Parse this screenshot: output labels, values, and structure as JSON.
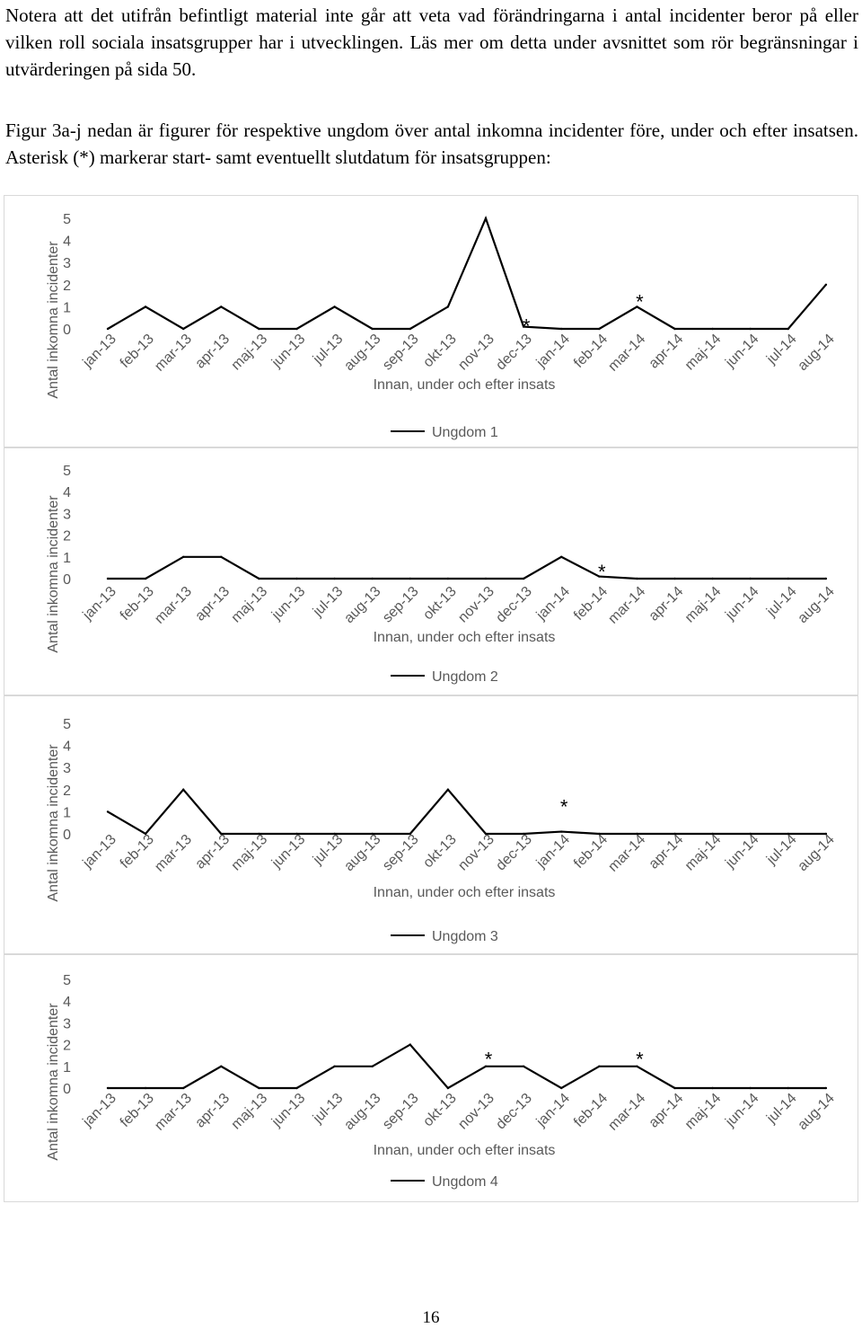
{
  "paragraphs": [
    "Notera att det utifrån befintligt material inte går att veta vad förändringarna i antal incidenter beror på eller vilken roll sociala insatsgrupper har i utvecklingen. Läs mer om detta under avsnittet som rör begränsningar i utvärderingen på sida 50.",
    "Figur 3a-j nedan är figurer för respektive ungdom över antal inkomna incidenter före, under och efter insatsen. Asterisk (*) markerar start- samt eventuellt slutdatum för insatsgruppen:"
  ],
  "page_number": "16",
  "chart_data": [
    {
      "type": "line",
      "ylabel": "Antal inkomna incidenter",
      "xlabel": "Innan, under och efter insats",
      "categories": [
        "jan-13",
        "feb-13",
        "mar-13",
        "apr-13",
        "maj-13",
        "jun-13",
        "jul-13",
        "aug-13",
        "sep-13",
        "okt-13",
        "nov-13",
        "dec-13",
        "jan-14",
        "feb-14",
        "mar-14",
        "apr-14",
        "maj-14",
        "jun-14",
        "jul-14",
        "aug-14"
      ],
      "yticks": [
        "0",
        "1",
        "2",
        "3",
        "4",
        "5"
      ],
      "ylim": [
        0,
        5
      ],
      "series": [
        {
          "name": "Ungdom 1",
          "values": [
            0,
            1,
            0,
            1,
            0,
            0,
            1,
            0,
            0,
            1,
            5,
            0.1,
            0,
            0,
            1,
            0,
            0,
            0,
            0,
            2
          ]
        }
      ],
      "annotations": [
        {
          "text": "*",
          "x": "dec-13",
          "y": 0.3
        },
        {
          "text": "*",
          "x": "mar-14",
          "y": 1.4
        }
      ],
      "legend": "bottom",
      "grid": false
    },
    {
      "type": "line",
      "ylabel": "Antal inkomna incidenter",
      "xlabel": "Innan, under och efter insats",
      "categories": [
        "jan-13",
        "feb-13",
        "mar-13",
        "apr-13",
        "maj-13",
        "jun-13",
        "jul-13",
        "aug-13",
        "sep-13",
        "okt-13",
        "nov-13",
        "dec-13",
        "jan-14",
        "feb-14",
        "mar-14",
        "apr-14",
        "maj-14",
        "jun-14",
        "jul-14",
        "aug-14"
      ],
      "yticks": [
        "0",
        "1",
        "2",
        "3",
        "4",
        "5"
      ],
      "ylim": [
        0,
        5
      ],
      "series": [
        {
          "name": "Ungdom 2",
          "values": [
            0,
            0,
            1,
            1,
            0,
            0,
            0,
            0,
            0,
            0,
            0,
            0,
            1,
            0.1,
            0,
            0,
            0,
            0,
            0,
            0
          ]
        }
      ],
      "annotations": [
        {
          "text": "*",
          "x": "feb-14",
          "y": 0.5
        }
      ],
      "legend": "bottom",
      "grid": false
    },
    {
      "type": "line",
      "ylabel": "Antal inkomna incidenter",
      "xlabel": "Innan, under och efter insats",
      "categories": [
        "jan-13",
        "feb-13",
        "mar-13",
        "apr-13",
        "maj-13",
        "jun-13",
        "jul-13",
        "aug-13",
        "sep-13",
        "okt-13",
        "nov-13",
        "dec-13",
        "jan-14",
        "feb-14",
        "mar-14",
        "apr-14",
        "maj-14",
        "jun-14",
        "jul-14",
        "aug-14"
      ],
      "yticks": [
        "0",
        "1",
        "2",
        "3",
        "4",
        "5"
      ],
      "ylim": [
        0,
        5
      ],
      "series": [
        {
          "name": "Ungdom 3",
          "values": [
            1,
            0,
            2,
            0,
            0,
            0,
            0,
            0,
            0,
            2,
            0,
            0,
            0.1,
            0,
            0,
            0,
            0,
            0,
            0,
            0
          ]
        }
      ],
      "annotations": [
        {
          "text": "*",
          "x": "jan-14",
          "y": 1.4
        }
      ],
      "legend": "bottom",
      "grid": false
    },
    {
      "type": "line",
      "ylabel": "Antal inkomna incidenter",
      "xlabel": "Innan, under och efter insats",
      "categories": [
        "jan-13",
        "feb-13",
        "mar-13",
        "apr-13",
        "maj-13",
        "jun-13",
        "jul-13",
        "aug-13",
        "sep-13",
        "okt-13",
        "nov-13",
        "dec-13",
        "jan-14",
        "feb-14",
        "mar-14",
        "apr-14",
        "maj-14",
        "jun-14",
        "jul-14",
        "aug-14"
      ],
      "yticks": [
        "0",
        "1",
        "2",
        "3",
        "4",
        "5"
      ],
      "ylim": [
        0,
        5
      ],
      "series": [
        {
          "name": "Ungdom 4",
          "values": [
            0,
            0,
            0,
            1,
            0,
            0,
            1,
            1,
            2,
            0,
            1,
            1,
            0,
            1,
            1,
            0,
            0,
            0,
            0,
            0
          ]
        }
      ],
      "annotations": [
        {
          "text": "*",
          "x": "nov-13",
          "y": 1.5
        },
        {
          "text": "*",
          "x": "mar-14",
          "y": 1.5
        }
      ],
      "legend": "bottom",
      "grid": false
    }
  ]
}
